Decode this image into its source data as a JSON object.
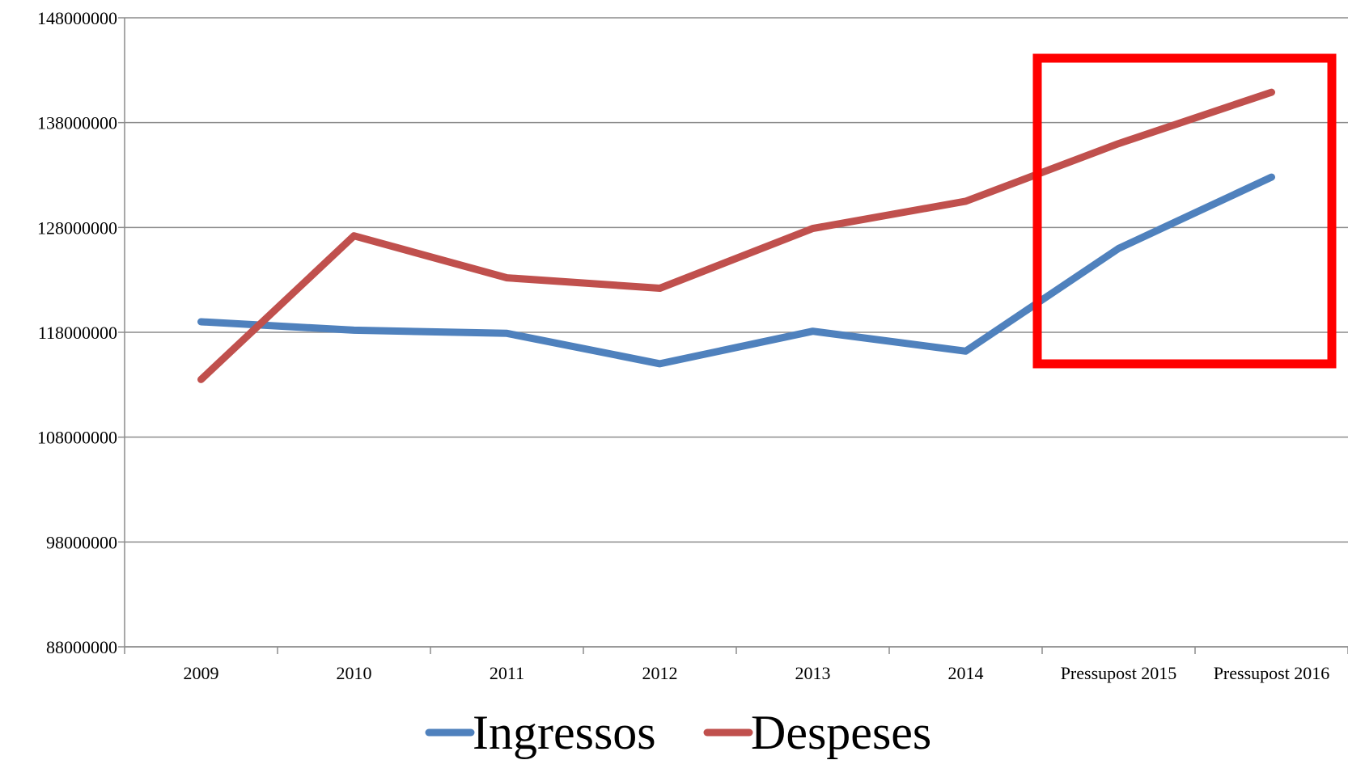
{
  "chart_data": {
    "type": "line",
    "title": "",
    "xlabel": "",
    "ylabel": "",
    "categories": [
      "2009",
      "2010",
      "2011",
      "2012",
      "2013",
      "2014",
      "Pressupost 2015",
      "Pressupost 2016"
    ],
    "ylim": [
      88000000,
      148000000
    ],
    "yticks": [
      "88000000",
      "98000000",
      "108000000",
      "118000000",
      "128000000",
      "138000000",
      "148000000"
    ],
    "grid": true,
    "legend_position": "bottom",
    "series": [
      {
        "name": "Ingressos",
        "color": "#4F81BD",
        "values": [
          119000000,
          118200000,
          117900000,
          115000000,
          118100000,
          116200000,
          126000000,
          132800000
        ]
      },
      {
        "name": "Despeses",
        "color": "#C0504D",
        "values": [
          113500000,
          127200000,
          123200000,
          122200000,
          127900000,
          130500000,
          136000000,
          140900000
        ]
      }
    ],
    "annotations": [
      {
        "type": "highlight-box",
        "color": "#FF0000",
        "from_category": "Pressupost 2015",
        "to_category": "Pressupost 2016"
      }
    ]
  }
}
